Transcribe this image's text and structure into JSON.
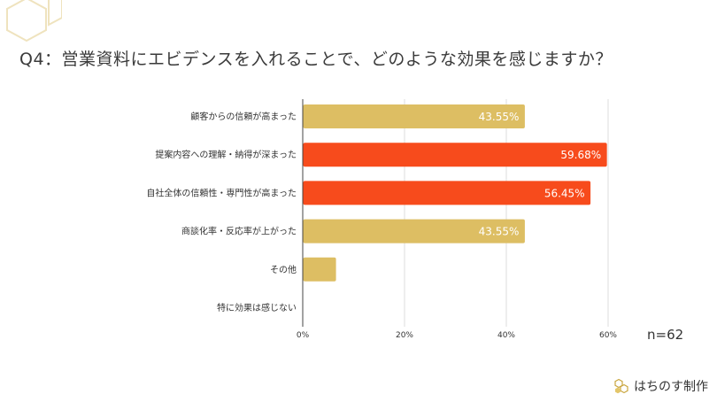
{
  "question": "Q4：営業資料にエビデンスを入れることで、どのような効果を感じますか？",
  "sample_size": "n=62",
  "brand": {
    "name": "はちのす制作",
    "icon": "hexagon-honeycomb-icon"
  },
  "colors": {
    "highlight": "#F74B1C",
    "normal": "#DDBE63",
    "grid": "#DDDDDD",
    "axis": "#444444"
  },
  "chart_data": {
    "type": "bar",
    "orientation": "horizontal",
    "categories": [
      "顧客からの信頼が高まった",
      "提案内容への理解・納得が深まった",
      "自社全体の信頼性・専門性が高まった",
      "商談化率・反応率が上がった",
      "その他",
      "特に効果は感じない"
    ],
    "values": [
      43.55,
      59.68,
      56.45,
      43.55,
      6.45,
      0
    ],
    "data_labels": [
      "43.55%",
      "59.68%",
      "56.45%",
      "43.55%",
      "",
      ""
    ],
    "highlighted": [
      false,
      true,
      true,
      false,
      false,
      false
    ],
    "xlim": [
      0,
      60
    ],
    "xticks": [
      0,
      20,
      40,
      60
    ],
    "xtick_labels": [
      "0%",
      "20%",
      "40%",
      "60%"
    ],
    "grid": true
  }
}
